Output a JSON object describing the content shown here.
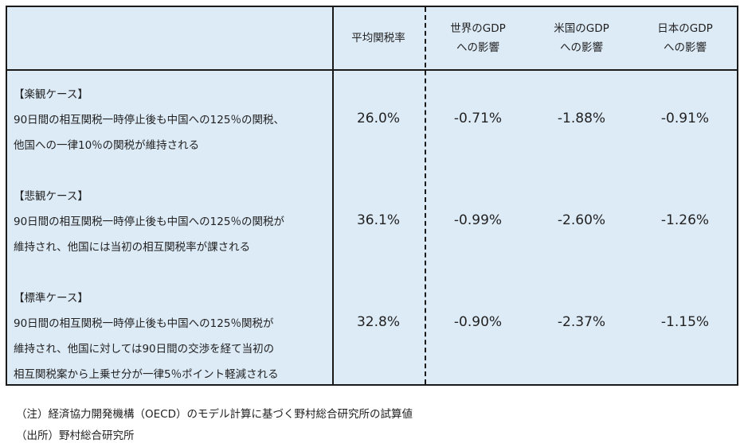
{
  "header": {
    "col1": "平均関税率",
    "col2_line1": "世界のGDP",
    "col2_line2": "への影響",
    "col3_line1": "米国のGDP",
    "col3_line2": "への影響",
    "col4_line1": "日本のGDP",
    "col4_line2": "への影響"
  },
  "rows": [
    {
      "title": "【楽観ケース】",
      "lines": [
        "90日間の相互関税一時停止後も中国への125％の関税、",
        "他国への一律10％の関税が維持される"
      ],
      "avg": "26.0%",
      "world": "-0.71%",
      "us": "-1.88%",
      "japan": "-0.91%"
    },
    {
      "title": "【悲観ケース】",
      "lines": [
        "90日間の相互関税一時停止後も中国への125％の関税が",
        "維持され、他国には当初の相互関税率が課される"
      ],
      "avg": "36.1%",
      "world": "-0.99%",
      "us": "-2.60%",
      "japan": "-1.26%"
    },
    {
      "title": "【標準ケース】",
      "lines": [
        "90日間の相互関税一時停止後も中国への125％関税が",
        "維持され、他国に対しては90日間の交渉を経て当初の",
        "相互関税案から上乗せ分が一律5％ポイント軽減される"
      ],
      "avg": "32.8%",
      "world": "-0.90%",
      "us": "-2.37%",
      "japan": "-1.15%"
    }
  ],
  "notes": {
    "note": "（注）経済協力開発機構（OECD）のモデル計算に基づく野村総合研究所の試算値",
    "source": "（出所）野村総合研究所"
  }
}
